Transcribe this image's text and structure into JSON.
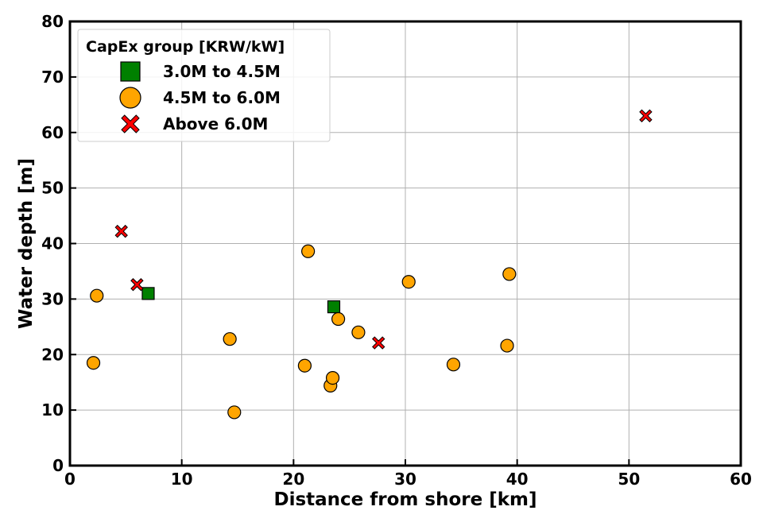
{
  "chart_data": {
    "type": "scatter",
    "title": "",
    "xlabel": "Distance from shore [km]",
    "ylabel": "Water depth [m]",
    "xlim": [
      0,
      60
    ],
    "ylim": [
      0,
      80
    ],
    "xticks": [
      0,
      10,
      20,
      30,
      40,
      50,
      60
    ],
    "yticks": [
      0,
      10,
      20,
      30,
      40,
      50,
      60,
      70,
      80
    ],
    "grid": true,
    "legend": {
      "title": "CapEx group [KRW/kW]",
      "placement": "top-left"
    },
    "series": [
      {
        "name": "3.0M to 4.5M",
        "marker": "square",
        "color": "#008000",
        "points": [
          [
            7.0,
            31.0
          ],
          [
            23.6,
            28.6
          ]
        ]
      },
      {
        "name": "4.5M to 6.0M",
        "marker": "circle",
        "color": "#ffa500",
        "points": [
          [
            2.4,
            30.6
          ],
          [
            2.1,
            18.5
          ],
          [
            14.3,
            22.8
          ],
          [
            14.7,
            9.6
          ],
          [
            21.3,
            38.6
          ],
          [
            21.0,
            18.0
          ],
          [
            23.3,
            14.4
          ],
          [
            23.5,
            15.8
          ],
          [
            24.0,
            26.4
          ],
          [
            25.8,
            24.0
          ],
          [
            30.3,
            33.1
          ],
          [
            34.3,
            18.2
          ],
          [
            39.3,
            34.5
          ],
          [
            39.1,
            21.6
          ]
        ]
      },
      {
        "name": "Above 6.0M",
        "marker": "x",
        "color": "#ff0000",
        "points": [
          [
            4.6,
            42.2
          ],
          [
            6.0,
            32.6
          ],
          [
            27.6,
            22.1
          ],
          [
            51.5,
            63.0
          ]
        ]
      }
    ]
  }
}
